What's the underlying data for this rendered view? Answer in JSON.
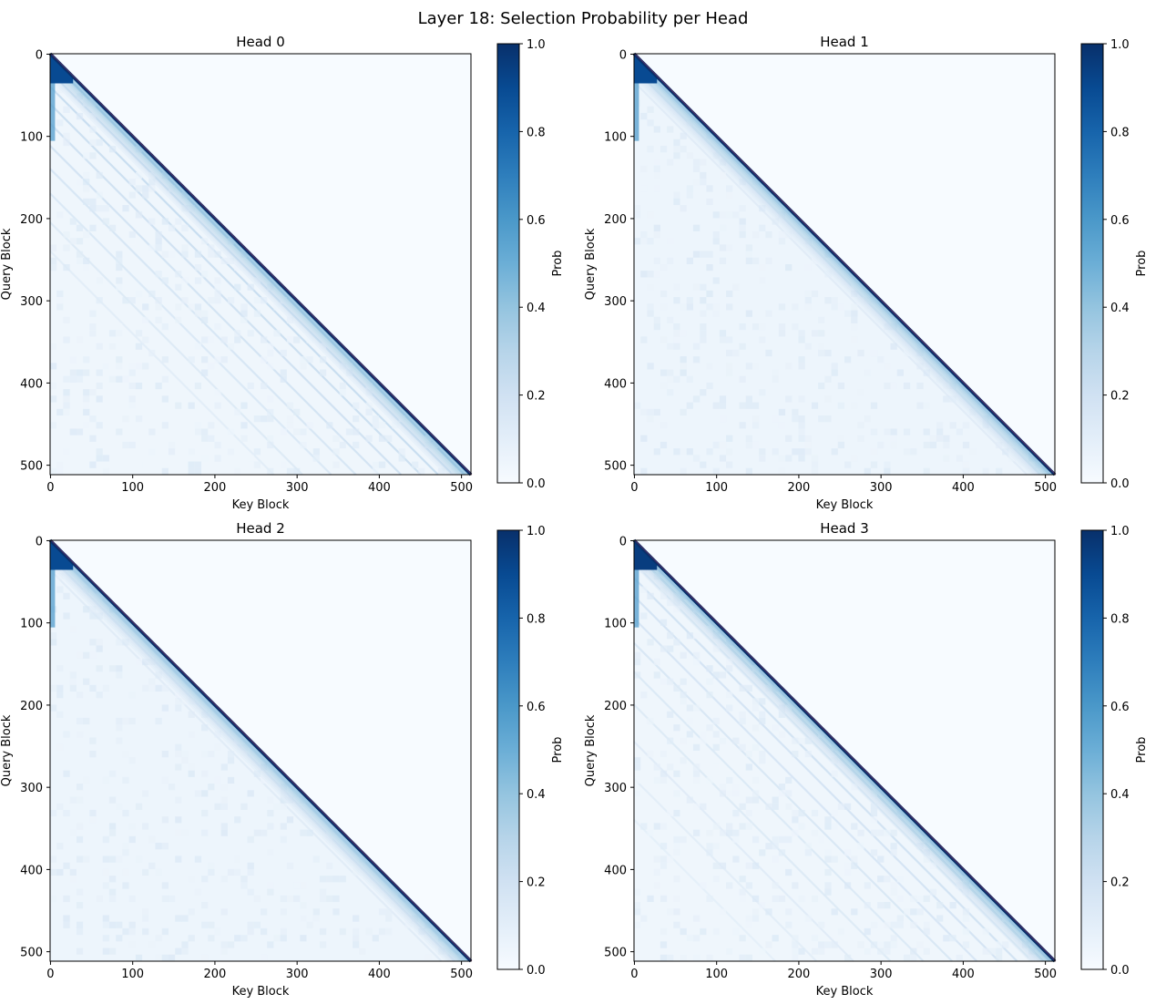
{
  "figure": {
    "title": "Layer 18: Selection Probability per Head"
  },
  "chart_data": [
    {
      "type": "heatmap",
      "title": "Head 0",
      "xlabel": "Key Block",
      "ylabel": "Query Block",
      "xlim": [
        0,
        511
      ],
      "ylim": [
        511,
        0
      ],
      "xticks": [
        "0",
        "100",
        "200",
        "300",
        "400",
        "500"
      ],
      "yticks": [
        "0",
        "100",
        "200",
        "300",
        "400",
        "500"
      ],
      "colorbar": {
        "label": "Prob",
        "range": [
          0.0,
          1.0
        ],
        "ticks": [
          "0.0",
          "0.2",
          "0.4",
          "0.6",
          "0.8",
          "1.0"
        ],
        "colormap": "Blues"
      },
      "pattern": {
        "diagonal_prob": 1.0,
        "early_block_prob": 0.9,
        "stripe_offsets": [
          8,
          22,
          40,
          61,
          85,
          112,
          140,
          170,
          205,
          240
        ],
        "stripe_prob": 0.25,
        "background_prob": 0.04
      }
    },
    {
      "type": "heatmap",
      "title": "Head 1",
      "xlabel": "Key Block",
      "ylabel": "Query Block",
      "xlim": [
        0,
        511
      ],
      "ylim": [
        511,
        0
      ],
      "xticks": [
        "0",
        "100",
        "200",
        "300",
        "400",
        "500"
      ],
      "yticks": [
        "0",
        "100",
        "200",
        "300",
        "400",
        "500"
      ],
      "colorbar": {
        "label": "Prob",
        "range": [
          0.0,
          1.0
        ],
        "ticks": [
          "0.0",
          "0.2",
          "0.4",
          "0.6",
          "0.8",
          "1.0"
        ],
        "colormap": "Blues"
      },
      "pattern": {
        "diagonal_prob": 1.0,
        "early_block_prob": 0.9,
        "stripe_offsets": [
          6,
          18,
          34
        ],
        "stripe_prob": 0.12,
        "background_prob": 0.05
      }
    },
    {
      "type": "heatmap",
      "title": "Head 2",
      "xlabel": "Key Block",
      "ylabel": "Query Block",
      "xlim": [
        0,
        511
      ],
      "ylim": [
        511,
        0
      ],
      "xticks": [
        "0",
        "100",
        "200",
        "300",
        "400",
        "500"
      ],
      "yticks": [
        "0",
        "100",
        "200",
        "300",
        "400",
        "500"
      ],
      "colorbar": {
        "label": "Prob",
        "range": [
          0.0,
          1.0
        ],
        "ticks": [
          "0.0",
          "0.2",
          "0.4",
          "0.6",
          "0.8",
          "1.0"
        ],
        "colormap": "Blues"
      },
      "pattern": {
        "diagonal_prob": 1.0,
        "early_block_prob": 0.9,
        "stripe_offsets": [
          8,
          20,
          36
        ],
        "stripe_prob": 0.12,
        "background_prob": 0.05
      }
    },
    {
      "type": "heatmap",
      "title": "Head 3",
      "xlabel": "Key Block",
      "ylabel": "Query Block",
      "xlim": [
        0,
        511
      ],
      "ylim": [
        511,
        0
      ],
      "xticks": [
        "0",
        "100",
        "200",
        "300",
        "400",
        "500"
      ],
      "yticks": [
        "0",
        "100",
        "200",
        "300",
        "400",
        "500"
      ],
      "colorbar": {
        "label": "Prob",
        "range": [
          0.0,
          1.0
        ],
        "ticks": [
          "0.0",
          "0.2",
          "0.4",
          "0.6",
          "0.8",
          "1.0"
        ],
        "colormap": "Blues"
      },
      "pattern": {
        "diagonal_prob": 1.0,
        "early_block_prob": 0.95,
        "stripe_offsets": [
          6,
          14,
          28,
          46,
          68,
          95,
          125,
          160,
          200,
          245,
          290,
          340
        ],
        "stripe_prob": 0.2,
        "background_prob": 0.04
      }
    }
  ]
}
